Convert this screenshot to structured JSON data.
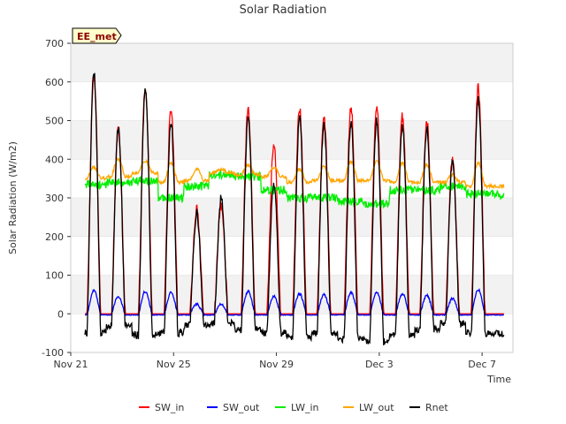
{
  "chart_data": {
    "type": "line",
    "title": "Solar Radiation",
    "xlabel": "Time",
    "ylabel": "Solar Radiation (W/m2)",
    "badge": "EE_met",
    "ylim": [
      -100,
      700
    ],
    "xlim_days": [
      0,
      17.2
    ],
    "yticks": [
      -100,
      0,
      100,
      200,
      300,
      400,
      500,
      600,
      700
    ],
    "xticks": [
      {
        "day": 0,
        "label": "Nov 21"
      },
      {
        "day": 4,
        "label": "Nov 25"
      },
      {
        "day": 8,
        "label": "Nov 29"
      },
      {
        "day": 12,
        "label": "Dec 3"
      },
      {
        "day": 16,
        "label": "Dec 7"
      }
    ],
    "colors": {
      "SW_in": "#ff0000",
      "SW_out": "#0000ff",
      "LW_in": "#00ee00",
      "LW_out": "#ffa500",
      "Rnet": "#000000",
      "band": "#f2f2f2",
      "grid": "#dddddd"
    },
    "days": [
      {
        "noon": 0.9,
        "sw_peak": 615,
        "sw_out_peak": 60,
        "rnet_peak": 605,
        "lw_in": 335,
        "lw_out_day": 380,
        "lw_out_night": 350,
        "rnet_night": -50
      },
      {
        "noon": 1.85,
        "sw_peak": 475,
        "sw_out_peak": 45,
        "rnet_peak": 465,
        "lw_in": 340,
        "lw_out_day": 400,
        "lw_out_night": 355,
        "rnet_night": -30
      },
      {
        "noon": 2.9,
        "sw_peak": 585,
        "sw_out_peak": 58,
        "rnet_peak": 565,
        "lw_in": 345,
        "lw_out_day": 395,
        "lw_out_night": 365,
        "rnet_night": -55
      },
      {
        "noon": 3.9,
        "sw_peak": 530,
        "sw_out_peak": 55,
        "rnet_peak": 480,
        "lw_in": 300,
        "lw_out_day": 390,
        "lw_out_night": 340,
        "rnet_night": -50
      },
      {
        "noon": 4.9,
        "sw_peak": 270,
        "sw_out_peak": 25,
        "rnet_peak": 240,
        "lw_in": 330,
        "lw_out_day": 375,
        "lw_out_night": 345,
        "rnet_night": -30
      },
      {
        "noon": 5.85,
        "sw_peak": 280,
        "sw_out_peak": 25,
        "rnet_peak": 280,
        "lw_in": 360,
        "lw_out_day": 375,
        "lw_out_night": 365,
        "rnet_night": -25
      },
      {
        "noon": 6.9,
        "sw_peak": 535,
        "sw_out_peak": 58,
        "rnet_peak": 485,
        "lw_in": 355,
        "lw_out_day": 385,
        "lw_out_night": 360,
        "rnet_night": -40
      },
      {
        "noon": 7.9,
        "sw_peak": 440,
        "sw_out_peak": 45,
        "rnet_peak": 320,
        "lw_in": 320,
        "lw_out_day": 380,
        "lw_out_night": 355,
        "rnet_night": -50
      },
      {
        "noon": 8.9,
        "sw_peak": 530,
        "sw_out_peak": 52,
        "rnet_peak": 485,
        "lw_in": 300,
        "lw_out_day": 375,
        "lw_out_night": 340,
        "rnet_night": -60
      },
      {
        "noon": 9.85,
        "sw_peak": 510,
        "sw_out_peak": 50,
        "rnet_peak": 475,
        "lw_in": 300,
        "lw_out_day": 380,
        "lw_out_night": 345,
        "rnet_night": -50
      },
      {
        "noon": 10.9,
        "sw_peak": 535,
        "sw_out_peak": 55,
        "rnet_peak": 480,
        "lw_in": 290,
        "lw_out_day": 395,
        "lw_out_night": 345,
        "rnet_night": -65
      },
      {
        "noon": 11.9,
        "sw_peak": 535,
        "sw_out_peak": 55,
        "rnet_peak": 480,
        "lw_in": 285,
        "lw_out_day": 395,
        "lw_out_night": 345,
        "rnet_night": -70
      },
      {
        "noon": 12.9,
        "sw_peak": 510,
        "sw_out_peak": 52,
        "rnet_peak": 470,
        "lw_in": 320,
        "lw_out_day": 390,
        "lw_out_night": 340,
        "rnet_night": -55
      },
      {
        "noon": 13.85,
        "sw_peak": 500,
        "sw_out_peak": 48,
        "rnet_peak": 460,
        "lw_in": 320,
        "lw_out_day": 385,
        "lw_out_night": 340,
        "rnet_night": -40
      },
      {
        "noon": 14.85,
        "sw_peak": 400,
        "sw_out_peak": 40,
        "rnet_peak": 375,
        "lw_in": 330,
        "lw_out_day": 360,
        "lw_out_night": 340,
        "rnet_night": -25
      },
      {
        "noon": 15.85,
        "sw_peak": 585,
        "sw_out_peak": 62,
        "rnet_peak": 540,
        "lw_in": 310,
        "lw_out_day": 390,
        "lw_out_night": 330,
        "rnet_night": -50
      }
    ],
    "legend": [
      "SW_in",
      "SW_out",
      "LW_in",
      "LW_out",
      "Rnet"
    ],
    "legend_position": "bottom-center",
    "grid": true
  }
}
